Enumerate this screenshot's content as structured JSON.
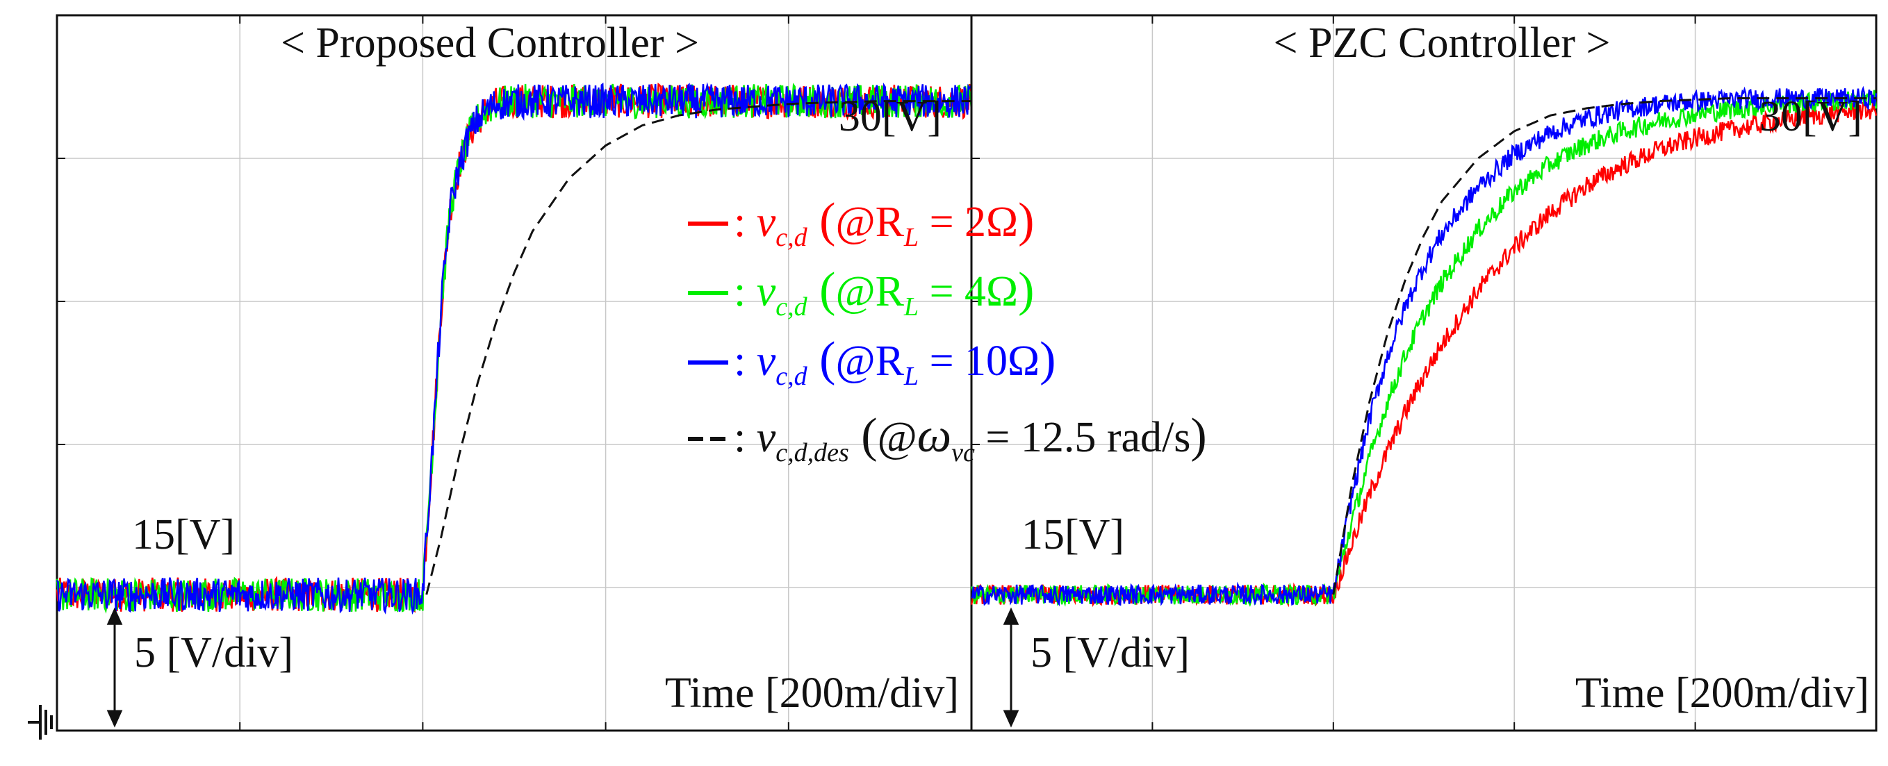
{
  "chart_data": [
    {
      "type": "line",
      "title": "< Proposed Controller >",
      "xlabel": "Time [200m/div]",
      "ylabel": "5 [V/div]",
      "xlim": [
        0,
        5
      ],
      "ylim": [
        0,
        5
      ],
      "grid": true,
      "initial_label": "15[V]",
      "final_label": "30[V]",
      "series": [
        {
          "key": "r2",
          "color": "#ff0000",
          "x": [
            0,
            2,
            2.02,
            2.06,
            2.1,
            2.15,
            2.2,
            2.25,
            2.3,
            2.35,
            2.4,
            2.5,
            2.6,
            2.8,
            3.0,
            4.0,
            5.0
          ],
          "y": [
            0.95,
            0.95,
            1.35,
            2.1,
            2.95,
            3.65,
            3.95,
            4.15,
            4.27,
            4.34,
            4.38,
            4.4,
            4.4,
            4.4,
            4.4,
            4.4,
            4.4
          ]
        },
        {
          "key": "r4",
          "color": "#00ee00",
          "x": [
            0,
            2,
            2.02,
            2.06,
            2.1,
            2.15,
            2.2,
            2.25,
            2.3,
            2.35,
            2.4,
            2.5,
            2.6,
            2.8,
            3.0,
            4.0,
            5.0
          ],
          "y": [
            0.95,
            0.95,
            1.35,
            2.1,
            2.95,
            3.65,
            3.95,
            4.15,
            4.27,
            4.34,
            4.38,
            4.4,
            4.4,
            4.4,
            4.4,
            4.4,
            4.4
          ]
        },
        {
          "key": "r10",
          "color": "#0000ff",
          "x": [
            0,
            2,
            2.02,
            2.06,
            2.1,
            2.15,
            2.2,
            2.25,
            2.3,
            2.35,
            2.4,
            2.5,
            2.6,
            2.8,
            3.0,
            4.0,
            5.0
          ],
          "y": [
            0.95,
            0.95,
            1.35,
            2.1,
            2.95,
            3.65,
            3.95,
            4.15,
            4.27,
            4.34,
            4.38,
            4.4,
            4.4,
            4.4,
            4.4,
            4.4,
            4.4
          ]
        },
        {
          "key": "des",
          "color": "#111111",
          "dashed": true,
          "x": [
            2.02,
            2.1,
            2.2,
            2.3,
            2.4,
            2.5,
            2.6,
            2.8,
            3.0,
            3.2,
            3.4,
            3.6,
            3.8,
            4.0,
            4.2,
            4.5,
            5.0
          ],
          "y": [
            0.95,
            1.35,
            1.93,
            2.43,
            2.85,
            3.2,
            3.49,
            3.86,
            4.09,
            4.23,
            4.3,
            4.34,
            4.36,
            4.38,
            4.39,
            4.4,
            4.4
          ]
        }
      ]
    },
    {
      "type": "line",
      "title": "< PZC Controller >",
      "xlabel": "Time [200m/div]",
      "ylabel": "5 [V/div]",
      "xlim": [
        0,
        5
      ],
      "ylim": [
        0,
        5
      ],
      "grid": true,
      "initial_label": "15[V]",
      "final_label": "30[V]",
      "series": [
        {
          "key": "r2",
          "color": "#ff0000",
          "x": [
            0,
            2,
            2.1,
            2.2,
            2.3,
            2.4,
            2.5,
            2.6,
            2.8,
            3.0,
            3.2,
            3.4,
            3.6,
            3.8,
            4.0,
            4.2,
            4.4,
            4.6,
            4.8,
            5.0
          ],
          "y": [
            0.95,
            0.95,
            1.3,
            1.65,
            1.95,
            2.23,
            2.48,
            2.7,
            3.08,
            3.38,
            3.62,
            3.81,
            3.95,
            4.06,
            4.14,
            4.2,
            4.25,
            4.29,
            4.32,
            4.34
          ]
        },
        {
          "key": "r4",
          "color": "#00ee00",
          "x": [
            0,
            2,
            2.1,
            2.2,
            2.3,
            2.4,
            2.5,
            2.6,
            2.8,
            3.0,
            3.2,
            3.4,
            3.6,
            3.8,
            4.0,
            4.2,
            4.4,
            4.6,
            4.8,
            5.0
          ],
          "y": [
            0.95,
            0.95,
            1.45,
            1.9,
            2.3,
            2.63,
            2.9,
            3.13,
            3.5,
            3.77,
            3.96,
            4.1,
            4.19,
            4.26,
            4.31,
            4.34,
            4.37,
            4.39,
            4.4,
            4.41
          ]
        },
        {
          "key": "r10",
          "color": "#0000ff",
          "x": [
            0,
            2,
            2.1,
            2.2,
            2.3,
            2.4,
            2.5,
            2.6,
            2.8,
            3.0,
            3.2,
            3.4,
            3.6,
            3.8,
            4.0,
            4.2,
            4.4,
            4.6,
            4.8,
            5.0
          ],
          "y": [
            0.95,
            0.95,
            1.62,
            2.18,
            2.62,
            2.97,
            3.25,
            3.47,
            3.8,
            4.03,
            4.18,
            4.28,
            4.34,
            4.38,
            4.4,
            4.41,
            4.42,
            4.42,
            4.42,
            4.42
          ]
        },
        {
          "key": "des",
          "color": "#111111",
          "dashed": true,
          "x": [
            2,
            2.1,
            2.2,
            2.3,
            2.4,
            2.5,
            2.6,
            2.8,
            3.0,
            3.2,
            3.4,
            3.6,
            3.8,
            4.0,
            4.2,
            4.5,
            5.0
          ],
          "y": [
            0.95,
            1.7,
            2.3,
            2.78,
            3.16,
            3.46,
            3.7,
            4.0,
            4.19,
            4.3,
            4.35,
            4.38,
            4.4,
            4.41,
            4.42,
            4.42,
            4.42
          ]
        }
      ]
    }
  ],
  "legend": {
    "placement": "center",
    "items": [
      {
        "key": "r2",
        "color": "#ff0000",
        "marker": "—",
        "var": "v",
        "var_sub": "c,d",
        "param": "R",
        "param_sub": "L",
        "param_value": "2Ω"
      },
      {
        "key": "r4",
        "color": "#00ee00",
        "marker": "—",
        "var": "v",
        "var_sub": "c,d",
        "param": "R",
        "param_sub": "L",
        "param_value": "4Ω"
      },
      {
        "key": "r10",
        "color": "#0000ff",
        "marker": "—",
        "var": "v",
        "var_sub": "c,d",
        "param": "R",
        "param_sub": "L",
        "param_value": "10Ω"
      },
      {
        "key": "des",
        "color": "#111111",
        "marker": "– –",
        "var": "v",
        "var_sub": "c,d,des",
        "param": "ω",
        "param_sub": "vc",
        "param_value": "12.5 rad/s"
      }
    ]
  },
  "ground_marker": "ground-symbol"
}
